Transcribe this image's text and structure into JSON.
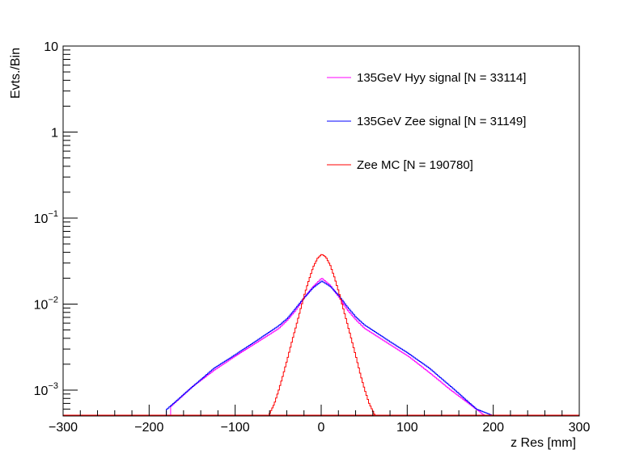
{
  "chart_data": {
    "type": "line",
    "xlabel": "z Res [mm]",
    "ylabel": "Evts./Bin",
    "xlim": [
      -300,
      300
    ],
    "ylim": [
      0.0005,
      10
    ],
    "yscale": "log",
    "xticks": [
      -300,
      -200,
      -100,
      0,
      100,
      200,
      300
    ],
    "xtick_labels": [
      "−300",
      "−200",
      "−100",
      "0",
      "100",
      "200",
      "300"
    ],
    "yticks": [
      {
        "value": 0.001,
        "base": "10",
        "exp": "−3"
      },
      {
        "value": 0.01,
        "base": "10",
        "exp": "−2"
      },
      {
        "value": 0.1,
        "base": "10",
        "exp": "−1"
      },
      {
        "value": 1,
        "text": "1"
      },
      {
        "value": 10,
        "text": "10"
      }
    ],
    "grid": false,
    "legend_position": "top-right",
    "series": [
      {
        "name": "135GeV Hyy signal [N = 33114]",
        "color": "#ff00ff",
        "x": [
          -175,
          -150,
          -125,
          -100,
          -75,
          -50,
          -40,
          -30,
          -20,
          -10,
          0,
          10,
          20,
          30,
          40,
          50,
          75,
          100,
          125,
          150,
          175,
          190
        ],
        "y": [
          0.00065,
          0.0011,
          0.0017,
          0.0025,
          0.0036,
          0.0052,
          0.0065,
          0.0085,
          0.012,
          0.016,
          0.02,
          0.0165,
          0.012,
          0.0085,
          0.0065,
          0.0052,
          0.0036,
          0.0025,
          0.0016,
          0.001,
          0.00065,
          0.0005
        ]
      },
      {
        "name": "135GeV Zee signal [N = 31149]",
        "color": "#0000ff",
        "x": [
          -180,
          -150,
          -125,
          -100,
          -75,
          -50,
          -40,
          -30,
          -20,
          -10,
          0,
          10,
          20,
          30,
          40,
          50,
          75,
          100,
          125,
          150,
          180,
          200
        ],
        "y": [
          0.0006,
          0.0011,
          0.0018,
          0.0026,
          0.0038,
          0.0056,
          0.0068,
          0.009,
          0.012,
          0.0155,
          0.0185,
          0.016,
          0.0125,
          0.0092,
          0.007,
          0.0057,
          0.0039,
          0.0027,
          0.0018,
          0.0011,
          0.0006,
          0.0005
        ]
      },
      {
        "name": "Zee MC [N = 190780]",
        "color": "#ff0000",
        "x": [
          -62,
          -55,
          -50,
          -45,
          -40,
          -35,
          -30,
          -25,
          -20,
          -15,
          -10,
          -5,
          0,
          5,
          10,
          15,
          20,
          25,
          30,
          35,
          40,
          45,
          50,
          55,
          62
        ],
        "y": [
          0.0005,
          0.0007,
          0.001,
          0.0015,
          0.0023,
          0.0036,
          0.0055,
          0.0085,
          0.013,
          0.019,
          0.027,
          0.034,
          0.038,
          0.035,
          0.028,
          0.02,
          0.0135,
          0.0088,
          0.0057,
          0.0037,
          0.0024,
          0.0015,
          0.001,
          0.0007,
          0.0005
        ]
      }
    ]
  }
}
